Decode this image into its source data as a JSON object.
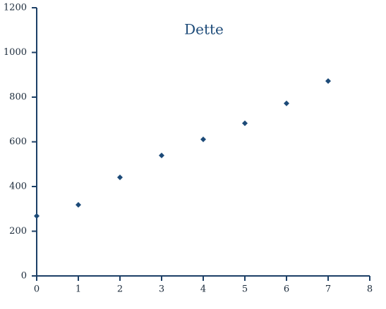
{
  "chart_data": {
    "type": "scatter",
    "title": "Dette",
    "x": [
      0,
      1,
      2,
      3,
      4,
      5,
      6,
      7
    ],
    "values": [
      268,
      318,
      441,
      539,
      611,
      683,
      772,
      872
    ],
    "color": "#1c4a78",
    "marker": "diamond",
    "xlim": [
      0,
      8
    ],
    "xticks": [
      0,
      1,
      2,
      3,
      4,
      5,
      6,
      7,
      8
    ],
    "ylim": [
      0,
      1200
    ],
    "yticks": [
      0,
      200,
      400,
      600,
      800,
      1000,
      1200
    ]
  }
}
